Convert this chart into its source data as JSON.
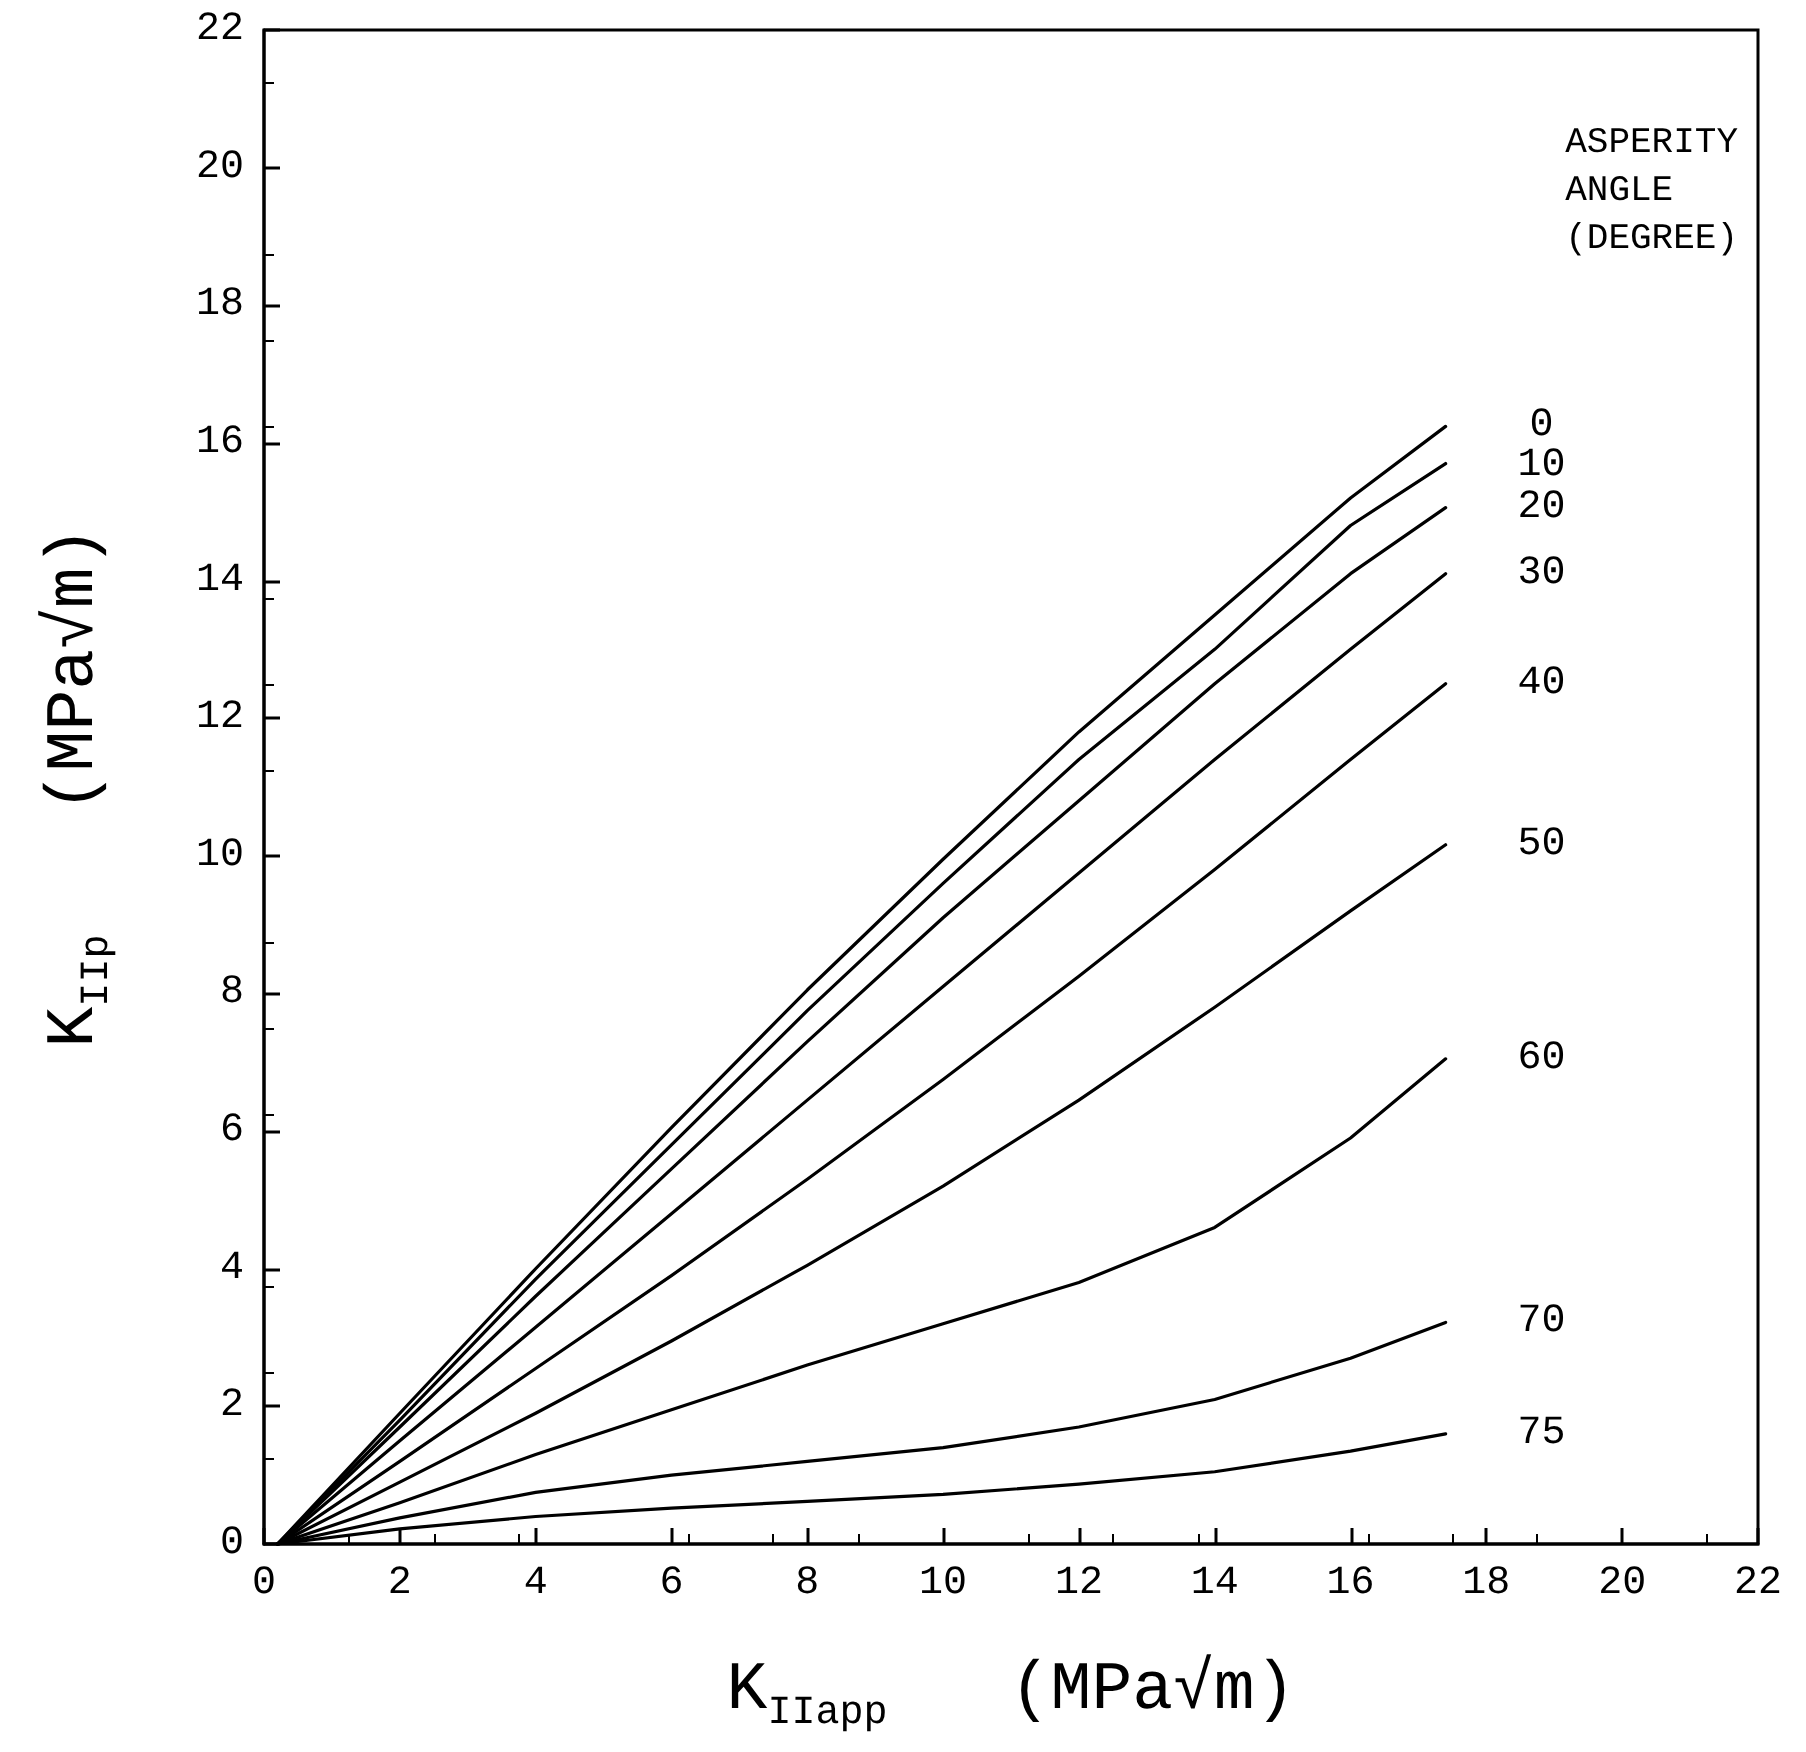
{
  "chart_data": {
    "type": "line",
    "xlabel": "K$_{IIapp}$   (MPa√m)",
    "ylabel": "K$_{IIp}$   (MPa√m)",
    "legend_title": "ASPERITY\nANGLE\n(DEGREE)",
    "x": [
      0.2,
      2,
      4,
      6,
      8,
      10,
      12,
      14,
      16,
      17.4
    ],
    "series": [
      {
        "name": "0",
        "color": "#000000",
        "values": [
          0,
          1.9,
          4.0,
          6.05,
          8.05,
          9.95,
          11.8,
          13.5,
          15.2,
          16.24
        ]
      },
      {
        "name": "10",
        "color": "#000000",
        "values": [
          0,
          1.8,
          3.85,
          5.8,
          7.75,
          9.6,
          11.4,
          13.0,
          14.8,
          15.7
        ]
      },
      {
        "name": "20",
        "color": "#000000",
        "values": [
          0,
          1.7,
          3.6,
          5.45,
          7.3,
          9.1,
          10.8,
          12.5,
          14.1,
          15.06
        ]
      },
      {
        "name": "30",
        "color": "#000000",
        "values": [
          0,
          1.5,
          3.15,
          4.8,
          6.45,
          8.1,
          9.75,
          11.4,
          13.0,
          14.1
        ]
      },
      {
        "name": "40",
        "color": "#000000",
        "values": [
          0,
          1.2,
          2.55,
          3.9,
          5.3,
          6.75,
          8.25,
          9.8,
          11.4,
          12.5
        ]
      },
      {
        "name": "50",
        "color": "#000000",
        "values": [
          0,
          0.9,
          1.9,
          2.95,
          4.05,
          5.2,
          6.45,
          7.8,
          9.2,
          10.16
        ]
      },
      {
        "name": "60",
        "color": "#000000",
        "values": [
          0,
          0.6,
          1.3,
          1.95,
          2.6,
          3.2,
          3.8,
          4.6,
          5.9,
          7.05
        ]
      },
      {
        "name": "70",
        "color": "#000000",
        "values": [
          0,
          0.38,
          0.75,
          1.0,
          1.2,
          1.4,
          1.7,
          2.1,
          2.7,
          3.22
        ]
      },
      {
        "name": "75",
        "color": "#000000",
        "values": [
          0,
          0.22,
          0.4,
          0.52,
          0.62,
          0.72,
          0.87,
          1.05,
          1.35,
          1.6
        ]
      }
    ],
    "xlim": [
      0,
      22
    ],
    "ylim": [
      0,
      22
    ],
    "xticks": [
      0,
      2,
      4,
      6,
      8,
      10,
      12,
      14,
      16,
      18,
      20,
      22
    ],
    "yticks": [
      0,
      2,
      4,
      6,
      8,
      10,
      12,
      14,
      16,
      18,
      20,
      22
    ],
    "grid": false,
    "legend": false,
    "marker": "none",
    "line_style": "solid"
  }
}
